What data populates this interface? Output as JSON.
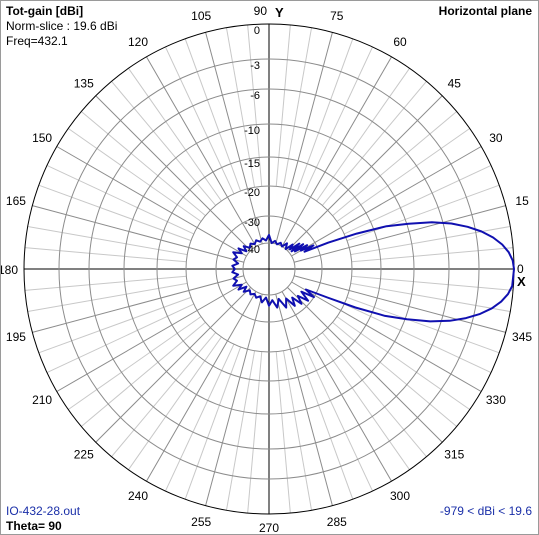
{
  "header": {
    "title": "Tot-gain [dBi]",
    "norm": "Norm-slice : 19.6 dBi",
    "freq": "Freq=432.1",
    "plane": "Horizontal plane"
  },
  "footer": {
    "file": "IO-432-28.out",
    "theta": "Theta= 90",
    "range": "-979 < dBi < 19.6"
  },
  "axes": {
    "y_label": "Y",
    "x_label": "X"
  },
  "colors": {
    "trace": "#1010b0",
    "grid": "#8c8c8c",
    "grid_light": "#c8c8c8"
  },
  "chart_data": {
    "type": "polar",
    "angle_unit": "deg",
    "angle_labels": [
      "0",
      "15",
      "30",
      "45",
      "60",
      "75",
      "90",
      "105",
      "120",
      "135",
      "150",
      "165",
      "180",
      "195",
      "210",
      "225",
      "240",
      "255",
      "270",
      "285",
      "300",
      "315",
      "330",
      "345"
    ],
    "radial_labels": [
      "0",
      "-3",
      "-6",
      "-10",
      "-15",
      "-20",
      "-30",
      "-40"
    ],
    "radial_values": [
      0,
      -3,
      -6,
      -10,
      -15,
      -20,
      -30,
      -40
    ],
    "series": [
      {
        "relative_gain_db": [
          [
            0,
            0
          ],
          [
            2,
            -0.1
          ],
          [
            4,
            -0.4
          ],
          [
            6,
            -0.9
          ],
          [
            8,
            -1.6
          ],
          [
            10,
            -2.5
          ],
          [
            12,
            -3.7
          ],
          [
            14,
            -5.2
          ],
          [
            16,
            -7.2
          ],
          [
            18,
            -9.8
          ],
          [
            20,
            -13
          ],
          [
            22,
            -18
          ],
          [
            24,
            -26
          ],
          [
            26,
            -35
          ],
          [
            28,
            -31
          ],
          [
            30,
            -36
          ],
          [
            32,
            -33
          ],
          [
            34,
            -38
          ],
          [
            36,
            -34
          ],
          [
            38,
            -39
          ],
          [
            40,
            -35
          ],
          [
            43,
            -39
          ],
          [
            46,
            -37
          ],
          [
            50,
            -40
          ],
          [
            55,
            -38
          ],
          [
            60,
            -40
          ],
          [
            66,
            -39
          ],
          [
            72,
            -40
          ],
          [
            78,
            -39
          ],
          [
            84,
            -40
          ],
          [
            90,
            -37
          ],
          [
            96,
            -39
          ],
          [
            102,
            -38
          ],
          [
            108,
            -39
          ],
          [
            114,
            -38
          ],
          [
            120,
            -39
          ],
          [
            126,
            -38
          ],
          [
            132,
            -39
          ],
          [
            138,
            -37
          ],
          [
            142,
            -39
          ],
          [
            146,
            -36
          ],
          [
            150,
            -38
          ],
          [
            155,
            -35
          ],
          [
            160,
            -37
          ],
          [
            165,
            -36
          ],
          [
            170,
            -38
          ],
          [
            175,
            -36
          ],
          [
            180,
            -37
          ],
          [
            185,
            -36
          ],
          [
            190,
            -38
          ],
          [
            195,
            -36
          ],
          [
            200,
            -37
          ],
          [
            205,
            -35
          ],
          [
            210,
            -38
          ],
          [
            214,
            -36
          ],
          [
            218,
            -39
          ],
          [
            222,
            -37
          ],
          [
            228,
            -39
          ],
          [
            234,
            -38
          ],
          [
            240,
            -39
          ],
          [
            246,
            -38
          ],
          [
            252,
            -39
          ],
          [
            258,
            -37
          ],
          [
            264,
            -39
          ],
          [
            270,
            -36
          ],
          [
            276,
            -38
          ],
          [
            282,
            -35
          ],
          [
            288,
            -38
          ],
          [
            294,
            -34
          ],
          [
            300,
            -37
          ],
          [
            305,
            -33
          ],
          [
            309,
            -36
          ],
          [
            313,
            -32
          ],
          [
            317,
            -35
          ],
          [
            321,
            -31
          ],
          [
            325,
            -35
          ],
          [
            328,
            -30
          ],
          [
            331,
            -34
          ],
          [
            334,
            -26
          ],
          [
            336,
            -18
          ],
          [
            338,
            -13
          ],
          [
            340,
            -9.8
          ],
          [
            342,
            -7.2
          ],
          [
            344,
            -5.2
          ],
          [
            346,
            -3.7
          ],
          [
            348,
            -2.5
          ],
          [
            350,
            -1.6
          ],
          [
            352,
            -0.9
          ],
          [
            354,
            -0.4
          ],
          [
            356,
            -0.1
          ],
          [
            360,
            0
          ]
        ]
      }
    ]
  }
}
